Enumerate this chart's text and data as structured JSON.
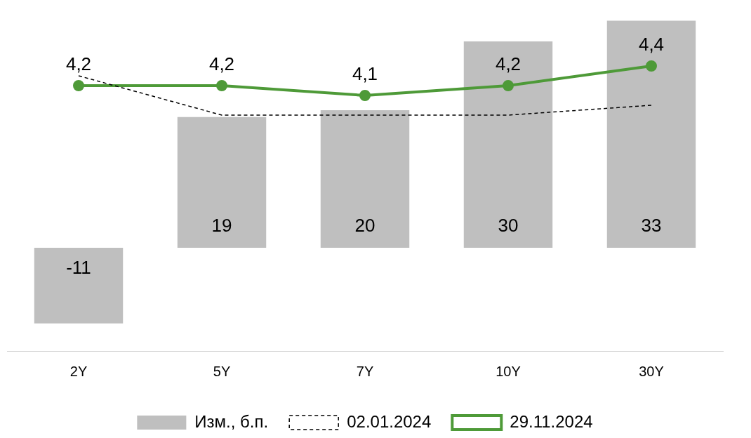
{
  "chart_data": {
    "type": "bar",
    "categories": [
      "2Y",
      "5Y",
      "7Y",
      "10Y",
      "30Y"
    ],
    "series": [
      {
        "name": "Изм., б.п.",
        "color": "#bfbfbf",
        "values": [
          -11,
          19,
          20,
          30,
          33
        ],
        "value_labels": [
          "-11",
          "19",
          "20",
          "30",
          "33"
        ]
      },
      {
        "name": "02.01.2024",
        "type": "line",
        "axis": "y2",
        "color": "#000000",
        "line_style": "dashed",
        "marker": "none",
        "values": [
          4.3,
          3.9,
          3.9,
          3.9,
          4.0
        ]
      },
      {
        "name": "29.11.2024",
        "type": "line",
        "axis": "y2",
        "color": "#4e9a38",
        "line_style": "solid",
        "marker": "circle",
        "values": [
          4.2,
          4.2,
          4.1,
          4.2,
          4.4
        ],
        "value_labels": [
          "4,2",
          "4,2",
          "4,1",
          "4,2",
          "4,4"
        ]
      }
    ],
    "tick_labels": "x",
    "grid": false,
    "legend": "bottom"
  }
}
